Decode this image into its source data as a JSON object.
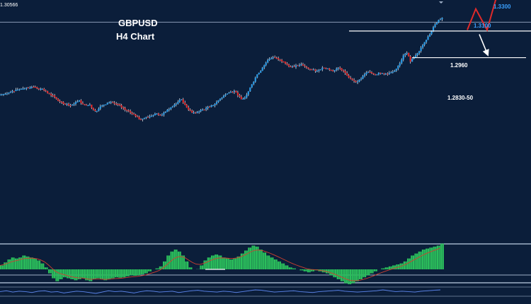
{
  "chart_data": {
    "type": "candlestick",
    "title": "GBPUSD",
    "subtitle": "H4 Chart",
    "corner_value": "1.30566",
    "colors": {
      "background": "#0b1e3a",
      "bullish": "#2b9be6",
      "bearish": "#e02a2a",
      "level_line": "#ffffff",
      "histogram": "#2bbf5c",
      "signal": "#d04030",
      "oscillator": "#2f5fcf",
      "target_bull_text": "#3aa0ff",
      "projection_bull": "#e02a2a",
      "projection_bear": "#ffffff"
    },
    "price_axis": {
      "min": 1.2,
      "max": 1.31
    },
    "close_path": [
      1.2675,
      1.2677,
      1.2683,
      1.269,
      1.2695,
      1.2697,
      1.27,
      1.2705,
      1.2703,
      1.2708,
      1.2702,
      1.2699,
      1.2692,
      1.268,
      1.267,
      1.2662,
      1.2645,
      1.264,
      1.263,
      1.2625,
      1.2628,
      1.264,
      1.2648,
      1.263,
      1.2625,
      1.2628,
      1.2605,
      1.26,
      1.262,
      1.2628,
      1.2636,
      1.264,
      1.2632,
      1.263,
      1.2615,
      1.2605,
      1.26,
      1.2586,
      1.2575,
      1.2562,
      1.2565,
      1.2572,
      1.2575,
      1.258,
      1.2588,
      1.258,
      1.2592,
      1.2605,
      1.2616,
      1.2628,
      1.264,
      1.2652,
      1.2628,
      1.2605,
      1.2592,
      1.259,
      1.2598,
      1.2606,
      1.2612,
      1.2618,
      1.2625,
      1.264,
      1.2655,
      1.2668,
      1.2678,
      1.2686,
      1.269,
      1.267,
      1.2652,
      1.266,
      1.2688,
      1.272,
      1.275,
      1.2772,
      1.2795,
      1.2818,
      1.2835,
      1.2842,
      1.2838,
      1.283,
      1.2822,
      1.2808,
      1.28,
      1.2798,
      1.2805,
      1.281,
      1.28,
      1.279,
      1.2786,
      1.278,
      1.2785,
      1.2795,
      1.279,
      1.2785,
      1.2778,
      1.279,
      1.2792,
      1.278,
      1.276,
      1.2745,
      1.2735,
      1.2732,
      1.2745,
      1.2765,
      1.2775,
      1.277,
      1.2762,
      1.2772,
      1.277,
      1.2768,
      1.2771,
      1.2776,
      1.279,
      1.2815,
      1.285,
      1.2862,
      1.2822,
      1.284,
      1.286,
      1.2885,
      1.291,
      1.2935,
      1.296,
      1.299,
      1.301,
      1.302
    ],
    "levels": [
      {
        "label": "1.2960",
        "value": 1.296
      },
      {
        "label": "1.2830-50",
        "value": 1.284
      }
    ],
    "top_line": 1.3,
    "projection_bull": {
      "points": [
        1.2965,
        1.306,
        1.2965,
        1.31,
        1.3135
      ],
      "targets": [
        {
          "label": "1.3100",
          "value": 1.31
        },
        {
          "label": "1.3300",
          "value": 1.33
        }
      ]
    },
    "projection_bear": {
      "points": [
        1.2945,
        1.286
      ]
    },
    "macd": [
      0.2,
      0.35,
      0.5,
      0.6,
      0.55,
      0.6,
      0.7,
      0.65,
      0.6,
      0.55,
      0.45,
      0.3,
      0.1,
      -0.2,
      -0.45,
      -0.6,
      -0.5,
      -0.4,
      -0.45,
      -0.5,
      -0.55,
      -0.5,
      -0.45,
      -0.55,
      -0.6,
      -0.5,
      -0.45,
      -0.5,
      -0.55,
      -0.5,
      -0.45,
      -0.4,
      -0.42,
      -0.4,
      -0.35,
      -0.3,
      -0.32,
      -0.3,
      -0.25,
      -0.2,
      -0.1,
      0.0,
      0.05,
      0.15,
      0.4,
      0.7,
      0.9,
      1.0,
      0.9,
      0.7,
      0.4,
      0.1,
      0.0,
      0.01,
      0.2,
      0.45,
      0.6,
      0.7,
      0.75,
      0.7,
      0.6,
      0.55,
      0.5,
      0.55,
      0.65,
      0.8,
      0.95,
      1.1,
      1.2,
      1.15,
      1.0,
      0.85,
      0.7,
      0.6,
      0.5,
      0.4,
      0.3,
      0.2,
      0.1,
      0.05,
      0.0,
      -0.05,
      -0.1,
      -0.15,
      -0.1,
      -0.05,
      -0.1,
      -0.15,
      -0.2,
      -0.3,
      -0.4,
      -0.5,
      -0.6,
      -0.7,
      -0.75,
      -0.7,
      -0.6,
      -0.5,
      -0.4,
      -0.3,
      -0.2,
      -0.1,
      0.0,
      0.05,
      0.1,
      0.15,
      0.2,
      0.25,
      0.3,
      0.4,
      0.55,
      0.7,
      0.8,
      0.9,
      1.0,
      1.05,
      1.1,
      1.15,
      1.2,
      1.3
    ],
    "oscillator": [
      0.5,
      0.6,
      0.45,
      0.55,
      0.5,
      0.4,
      0.55,
      0.6,
      0.45,
      0.5,
      0.35,
      0.45,
      0.55,
      0.5,
      0.4,
      0.3,
      0.45,
      0.6,
      0.5,
      0.55,
      0.45,
      0.35,
      0.5,
      0.6,
      0.55,
      0.45,
      0.5,
      0.55,
      0.4,
      0.5,
      0.6,
      0.65,
      0.55,
      0.5,
      0.45,
      0.55,
      0.5,
      0.4,
      0.5,
      0.6,
      0.7,
      0.65,
      0.55,
      0.45,
      0.5,
      0.55,
      0.6,
      0.5,
      0.45,
      0.4,
      0.5,
      0.55,
      0.6,
      0.65,
      0.55,
      0.5,
      0.45,
      0.5,
      0.55,
      0.6,
      0.7,
      0.6,
      0.5,
      0.55,
      0.5,
      0.45,
      0.55,
      0.6,
      0.65,
      0.7
    ]
  }
}
